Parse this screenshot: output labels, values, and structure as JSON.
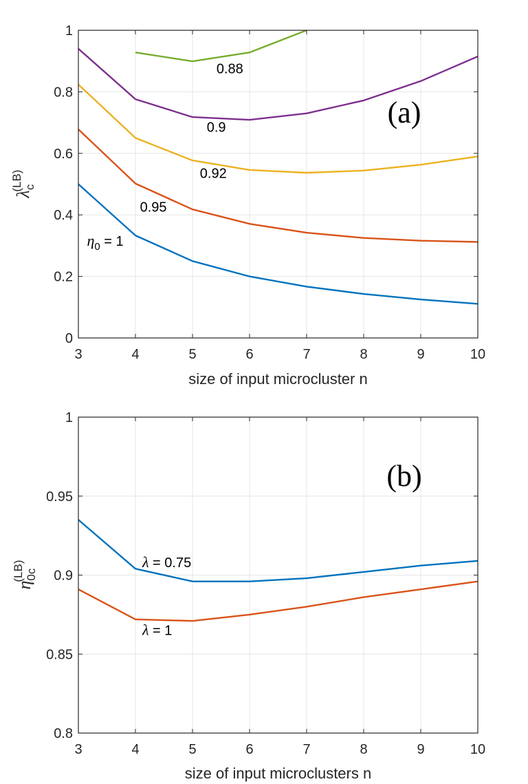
{
  "chart_data": [
    {
      "type": "line",
      "panel_label": "(a)",
      "xlabel": "size of input microcluster n",
      "ylabel": {
        "symbol": "λ",
        "sub": "c",
        "sup": "(LB)"
      },
      "xlim": [
        3,
        10
      ],
      "ylim": [
        0,
        1
      ],
      "xticks": [
        "3",
        "4",
        "5",
        "6",
        "7",
        "8",
        "9",
        "10"
      ],
      "yticks": [
        "0",
        "0.2",
        "0.4",
        "0.6",
        "0.8",
        "1"
      ],
      "grid": true,
      "series": [
        {
          "name": "1",
          "color": "#0072BD",
          "x": [
            3,
            4,
            5,
            6,
            7,
            8,
            9,
            10
          ],
          "y": [
            0.5,
            0.333,
            0.25,
            0.2,
            0.167,
            0.143,
            0.125,
            0.111
          ]
        },
        {
          "name": "0.95",
          "color": "#D95319",
          "x": [
            3,
            4,
            5,
            6,
            7,
            8,
            9,
            10
          ],
          "y": [
            0.678,
            0.502,
            0.418,
            0.371,
            0.342,
            0.325,
            0.316,
            0.312
          ]
        },
        {
          "name": "0.92",
          "color": "#EDB120",
          "x": [
            3,
            4,
            5,
            6,
            7,
            8,
            9,
            10
          ],
          "y": [
            0.824,
            0.65,
            0.577,
            0.546,
            0.537,
            0.544,
            0.563,
            0.59
          ]
        },
        {
          "name": "0.9",
          "color": "#7E2F8E",
          "x": [
            3,
            4,
            5,
            6,
            7,
            8,
            9,
            10
          ],
          "y": [
            0.94,
            0.776,
            0.718,
            0.709,
            0.73,
            0.772,
            0.835,
            0.915
          ]
        },
        {
          "name": "0.88",
          "color": "#77AC30",
          "x": [
            4,
            5,
            6,
            7
          ],
          "y": [
            0.928,
            0.899,
            0.928,
            1.0
          ]
        }
      ],
      "annotations": [
        {
          "symbol": "η",
          "sub": "0",
          "text": " = 1",
          "x": 3.15,
          "y": 0.3
        },
        {
          "text": "0.95",
          "x": 4.08,
          "y": 0.41
        },
        {
          "text": "0.92",
          "x": 5.13,
          "y": 0.52
        },
        {
          "text": "0.9",
          "x": 5.25,
          "y": 0.67
        },
        {
          "text": "0.88",
          "x": 5.42,
          "y": 0.86
        }
      ]
    },
    {
      "type": "line",
      "panel_label": "(b)",
      "xlabel": "size of input microclusters n",
      "ylabel": {
        "symbol": "η",
        "sub": "0c",
        "sup": "(LB)"
      },
      "xlim": [
        3,
        10
      ],
      "ylim": [
        0.8,
        1
      ],
      "xticks": [
        "3",
        "4",
        "5",
        "6",
        "7",
        "8",
        "9",
        "10"
      ],
      "yticks": [
        "0.8",
        "0.85",
        "0.9",
        "0.95",
        "1"
      ],
      "grid": true,
      "series": [
        {
          "name": "0.75",
          "color": "#0072BD",
          "x": [
            3,
            4,
            5,
            6,
            7,
            8,
            9,
            10
          ],
          "y": [
            0.935,
            0.904,
            0.896,
            0.896,
            0.898,
            0.902,
            0.906,
            0.909
          ]
        },
        {
          "name": "1",
          "color": "#D95319",
          "x": [
            3,
            4,
            5,
            6,
            7,
            8,
            9,
            10
          ],
          "y": [
            0.891,
            0.872,
            0.871,
            0.875,
            0.88,
            0.886,
            0.891,
            0.896
          ]
        }
      ],
      "annotations": [
        {
          "symbol": "λ",
          "text": " = 0.75",
          "x": 4.12,
          "y": 0.905
        },
        {
          "symbol": "λ",
          "text": " = 1",
          "x": 4.12,
          "y": 0.862
        }
      ]
    }
  ]
}
